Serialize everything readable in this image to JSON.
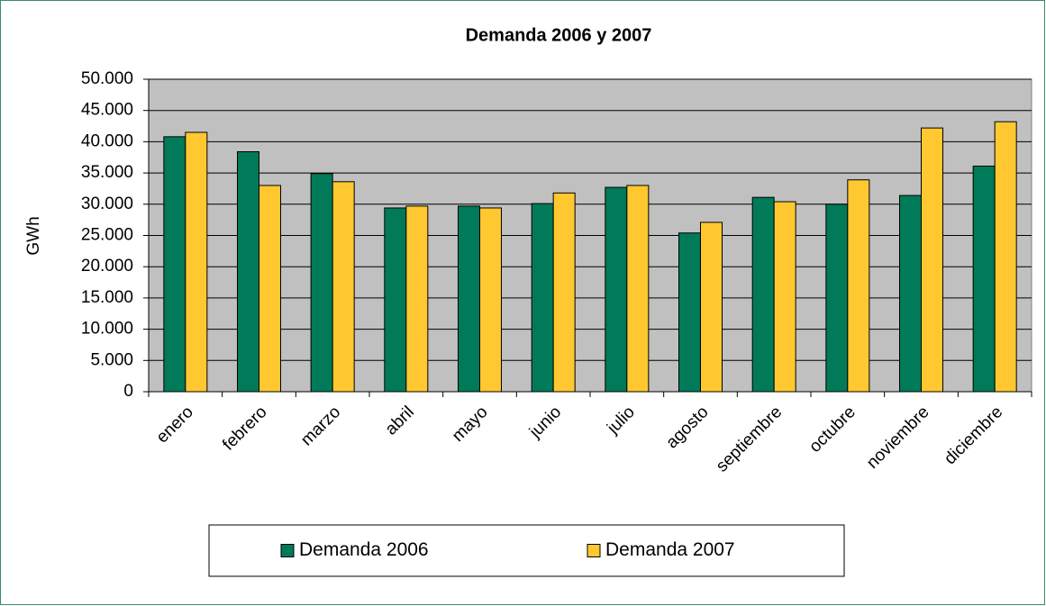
{
  "chart_data": {
    "type": "bar",
    "title": "Demanda 2006 y 2007",
    "y_label": "GWh",
    "categories": [
      "enero",
      "febrero",
      "marzo",
      "abril",
      "mayo",
      "junio",
      "julio",
      "agosto",
      "septiembre",
      "octubre",
      "noviembre",
      "diciembre"
    ],
    "series": [
      {
        "name": "Demanda 2006",
        "color": "#007a58",
        "values": [
          40800,
          38400,
          34900,
          29400,
          29700,
          30100,
          32700,
          25400,
          31100,
          30000,
          31400,
          36100
        ]
      },
      {
        "name": "Demanda 2007",
        "color": "#ffc830",
        "values": [
          41500,
          33000,
          33600,
          29700,
          29400,
          31800,
          33000,
          27100,
          30400,
          33900,
          42200,
          43200
        ]
      }
    ],
    "ylim": [
      0,
      50000
    ],
    "yticks": [
      0,
      {
        "value": 5000,
        "label": "5.000"
      },
      {
        "value": 10000,
        "label": "10.000"
      },
      {
        "value": 15000,
        "label": "15.000"
      },
      {
        "value": 20000,
        "label": "20.000"
      },
      {
        "value": 25000,
        "label": "25.000"
      },
      {
        "value": 30000,
        "label": "30.000"
      },
      {
        "value": 35000,
        "label": "35.000"
      },
      {
        "value": 40000,
        "label": "40.000"
      },
      {
        "value": 45000,
        "label": "45.000"
      },
      {
        "value": 50000,
        "label": "50.000"
      }
    ],
    "grid": true,
    "legend": "bottom"
  }
}
